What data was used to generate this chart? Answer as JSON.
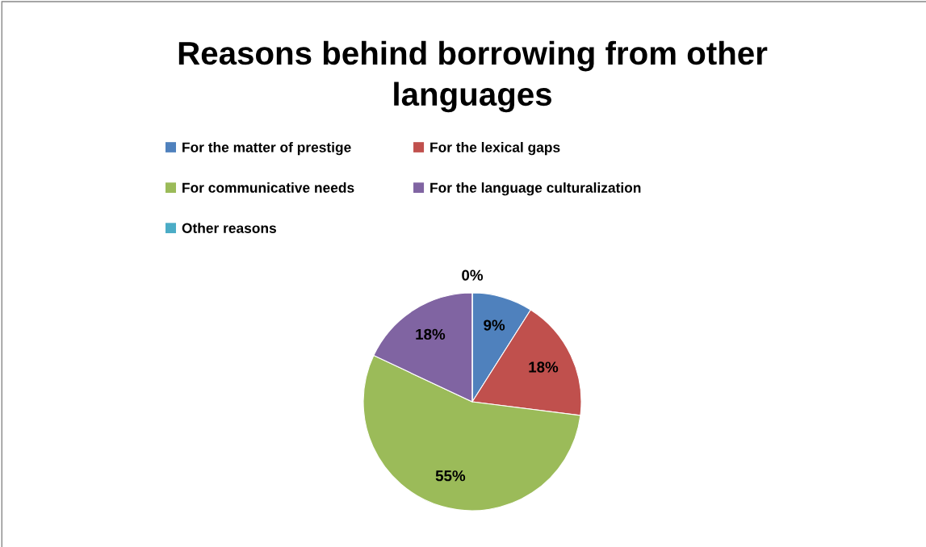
{
  "chart_data": {
    "type": "pie",
    "title": "Reasons behind borrowing from other\nlanguages",
    "categories": [
      "For the matter of prestige",
      "For the lexical gaps",
      "For communicative needs",
      "For the language culturalization",
      "Other reasons"
    ],
    "values": [
      9,
      18,
      55,
      18,
      0
    ],
    "colors": [
      "#4f81bd",
      "#c0504d",
      "#9bbb59",
      "#8064a2",
      "#4bacc6"
    ],
    "value_labels": [
      "9%",
      "18%",
      "55%",
      "18%",
      "0%"
    ],
    "legend": "top"
  }
}
